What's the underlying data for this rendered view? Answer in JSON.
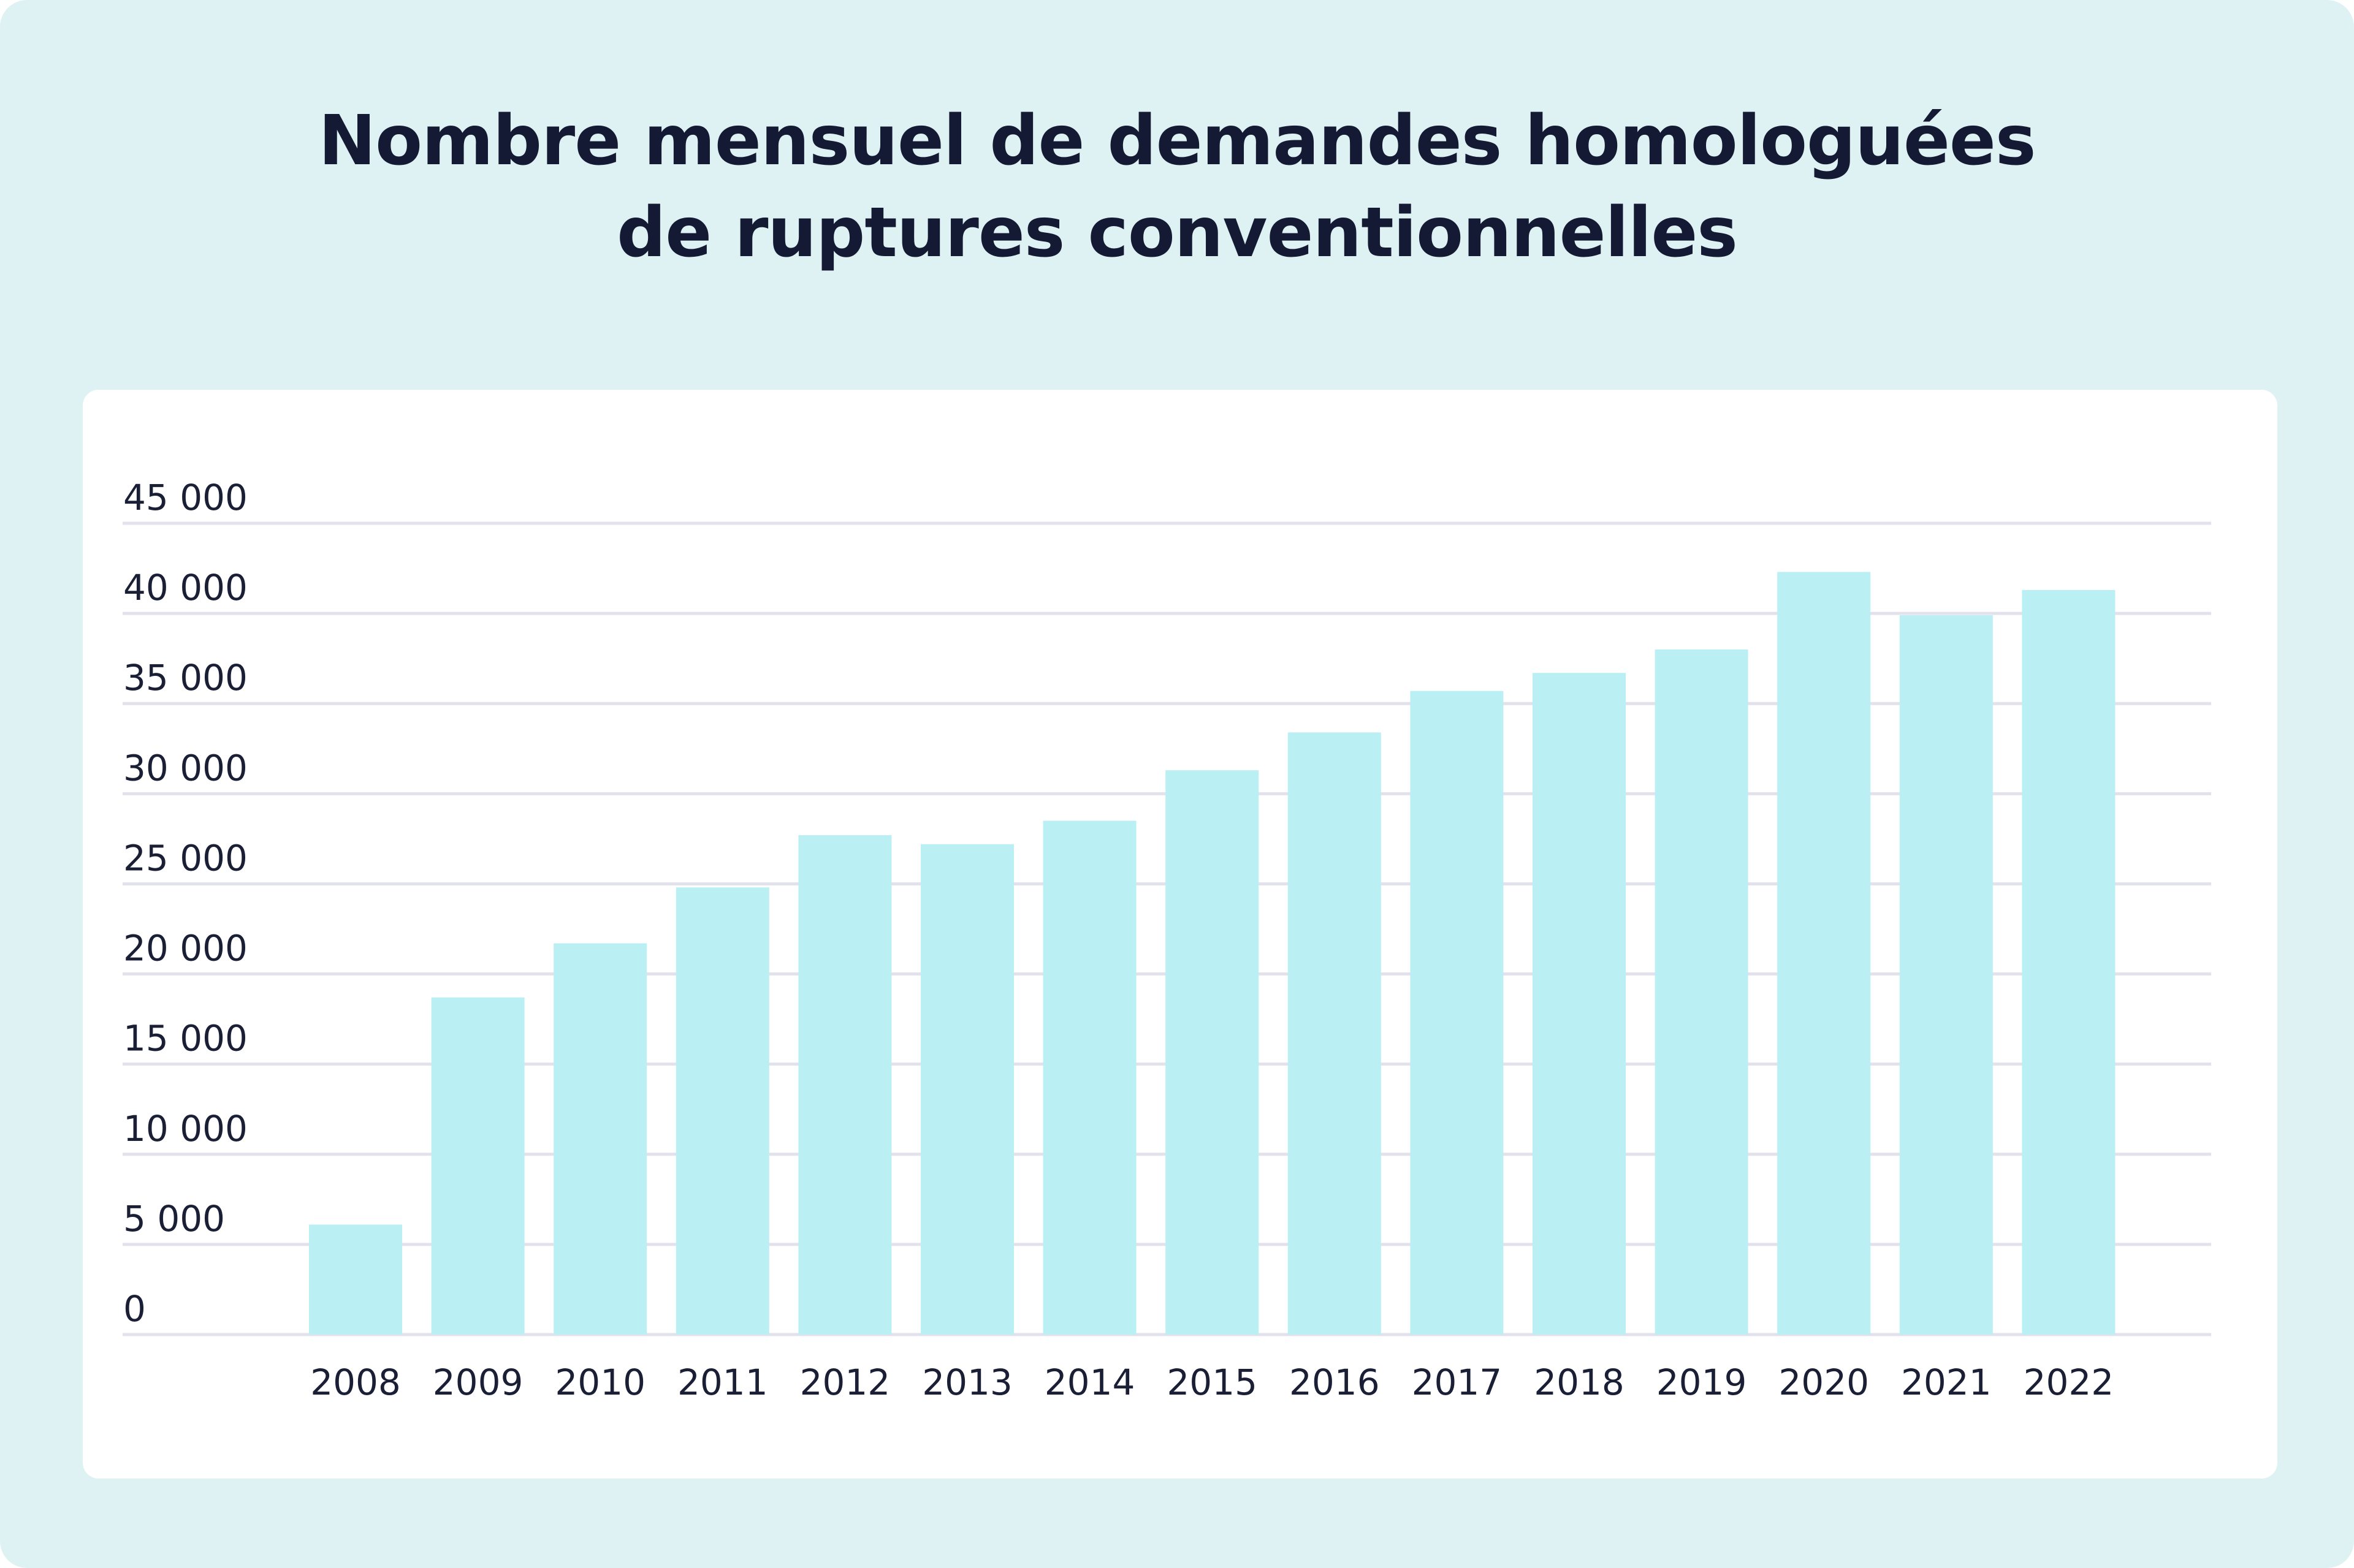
{
  "colors": {
    "background": "#dff2f3",
    "card": "#ffffff",
    "bar": "#baf0f3",
    "grid": "#e2e2ec",
    "text": "#141a33"
  },
  "header": {
    "title_line1": "Nombre mensuel de demandes homologuées",
    "title_line2": "de ruptures conventionnelles"
  },
  "chart_data": {
    "type": "bar",
    "title": "Nombre mensuel de demandes homologuées de ruptures conventionnelles",
    "xlabel": "",
    "ylabel": "",
    "categories": [
      "2008",
      "2009",
      "2010",
      "2011",
      "2012",
      "2013",
      "2014",
      "2015",
      "2016",
      "2017",
      "2018",
      "2019",
      "2020",
      "2021",
      "2022"
    ],
    "values": [
      6100,
      18700,
      21700,
      24800,
      27700,
      27200,
      28500,
      31300,
      33400,
      35700,
      36700,
      38000,
      42300,
      39900,
      41300
    ],
    "ylim": [
      0,
      45000
    ],
    "yticks": [
      0,
      5000,
      10000,
      15000,
      20000,
      25000,
      30000,
      35000,
      40000,
      45000
    ],
    "ytick_labels": [
      "0",
      "5 000",
      "10 000",
      "15 000",
      "20 000",
      "25 000",
      "30 000",
      "35 000",
      "40 000",
      "45 000"
    ],
    "grid": true,
    "legend": "none"
  }
}
